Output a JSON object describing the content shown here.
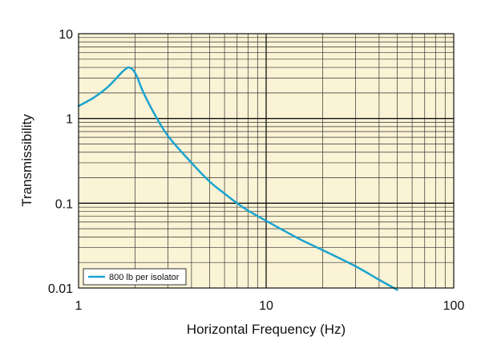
{
  "chart_data": {
    "type": "line",
    "title": "",
    "xlabel": "Horizontal Frequency (Hz)",
    "ylabel": "Transmissibility",
    "xscale": "log",
    "yscale": "log",
    "xlim": [
      1,
      100
    ],
    "ylim": [
      0.01,
      10
    ],
    "x_tick_labels": [
      "1",
      "10",
      "100"
    ],
    "y_tick_labels": [
      "0.01",
      "0.1",
      "1",
      "10"
    ],
    "grid": true,
    "plot_background": "#fbf3d5",
    "legend_position": "bottom-left",
    "series": [
      {
        "name": "800 lb per isolator",
        "color": "#1aa3cf",
        "x": [
          1.0,
          1.2,
          1.4,
          1.55,
          1.7,
          1.8,
          1.85,
          1.95,
          2.05,
          2.2,
          2.5,
          3.0,
          4.0,
          5.0,
          6.0,
          7.0,
          8.0,
          10.0,
          15.0,
          20.0,
          30.0,
          40.0,
          50.0
        ],
        "y": [
          1.4,
          1.75,
          2.25,
          2.8,
          3.5,
          3.9,
          4.0,
          3.75,
          3.1,
          2.1,
          1.2,
          0.62,
          0.3,
          0.18,
          0.13,
          0.1,
          0.082,
          0.062,
          0.038,
          0.028,
          0.018,
          0.0125,
          0.0095
        ]
      }
    ]
  }
}
